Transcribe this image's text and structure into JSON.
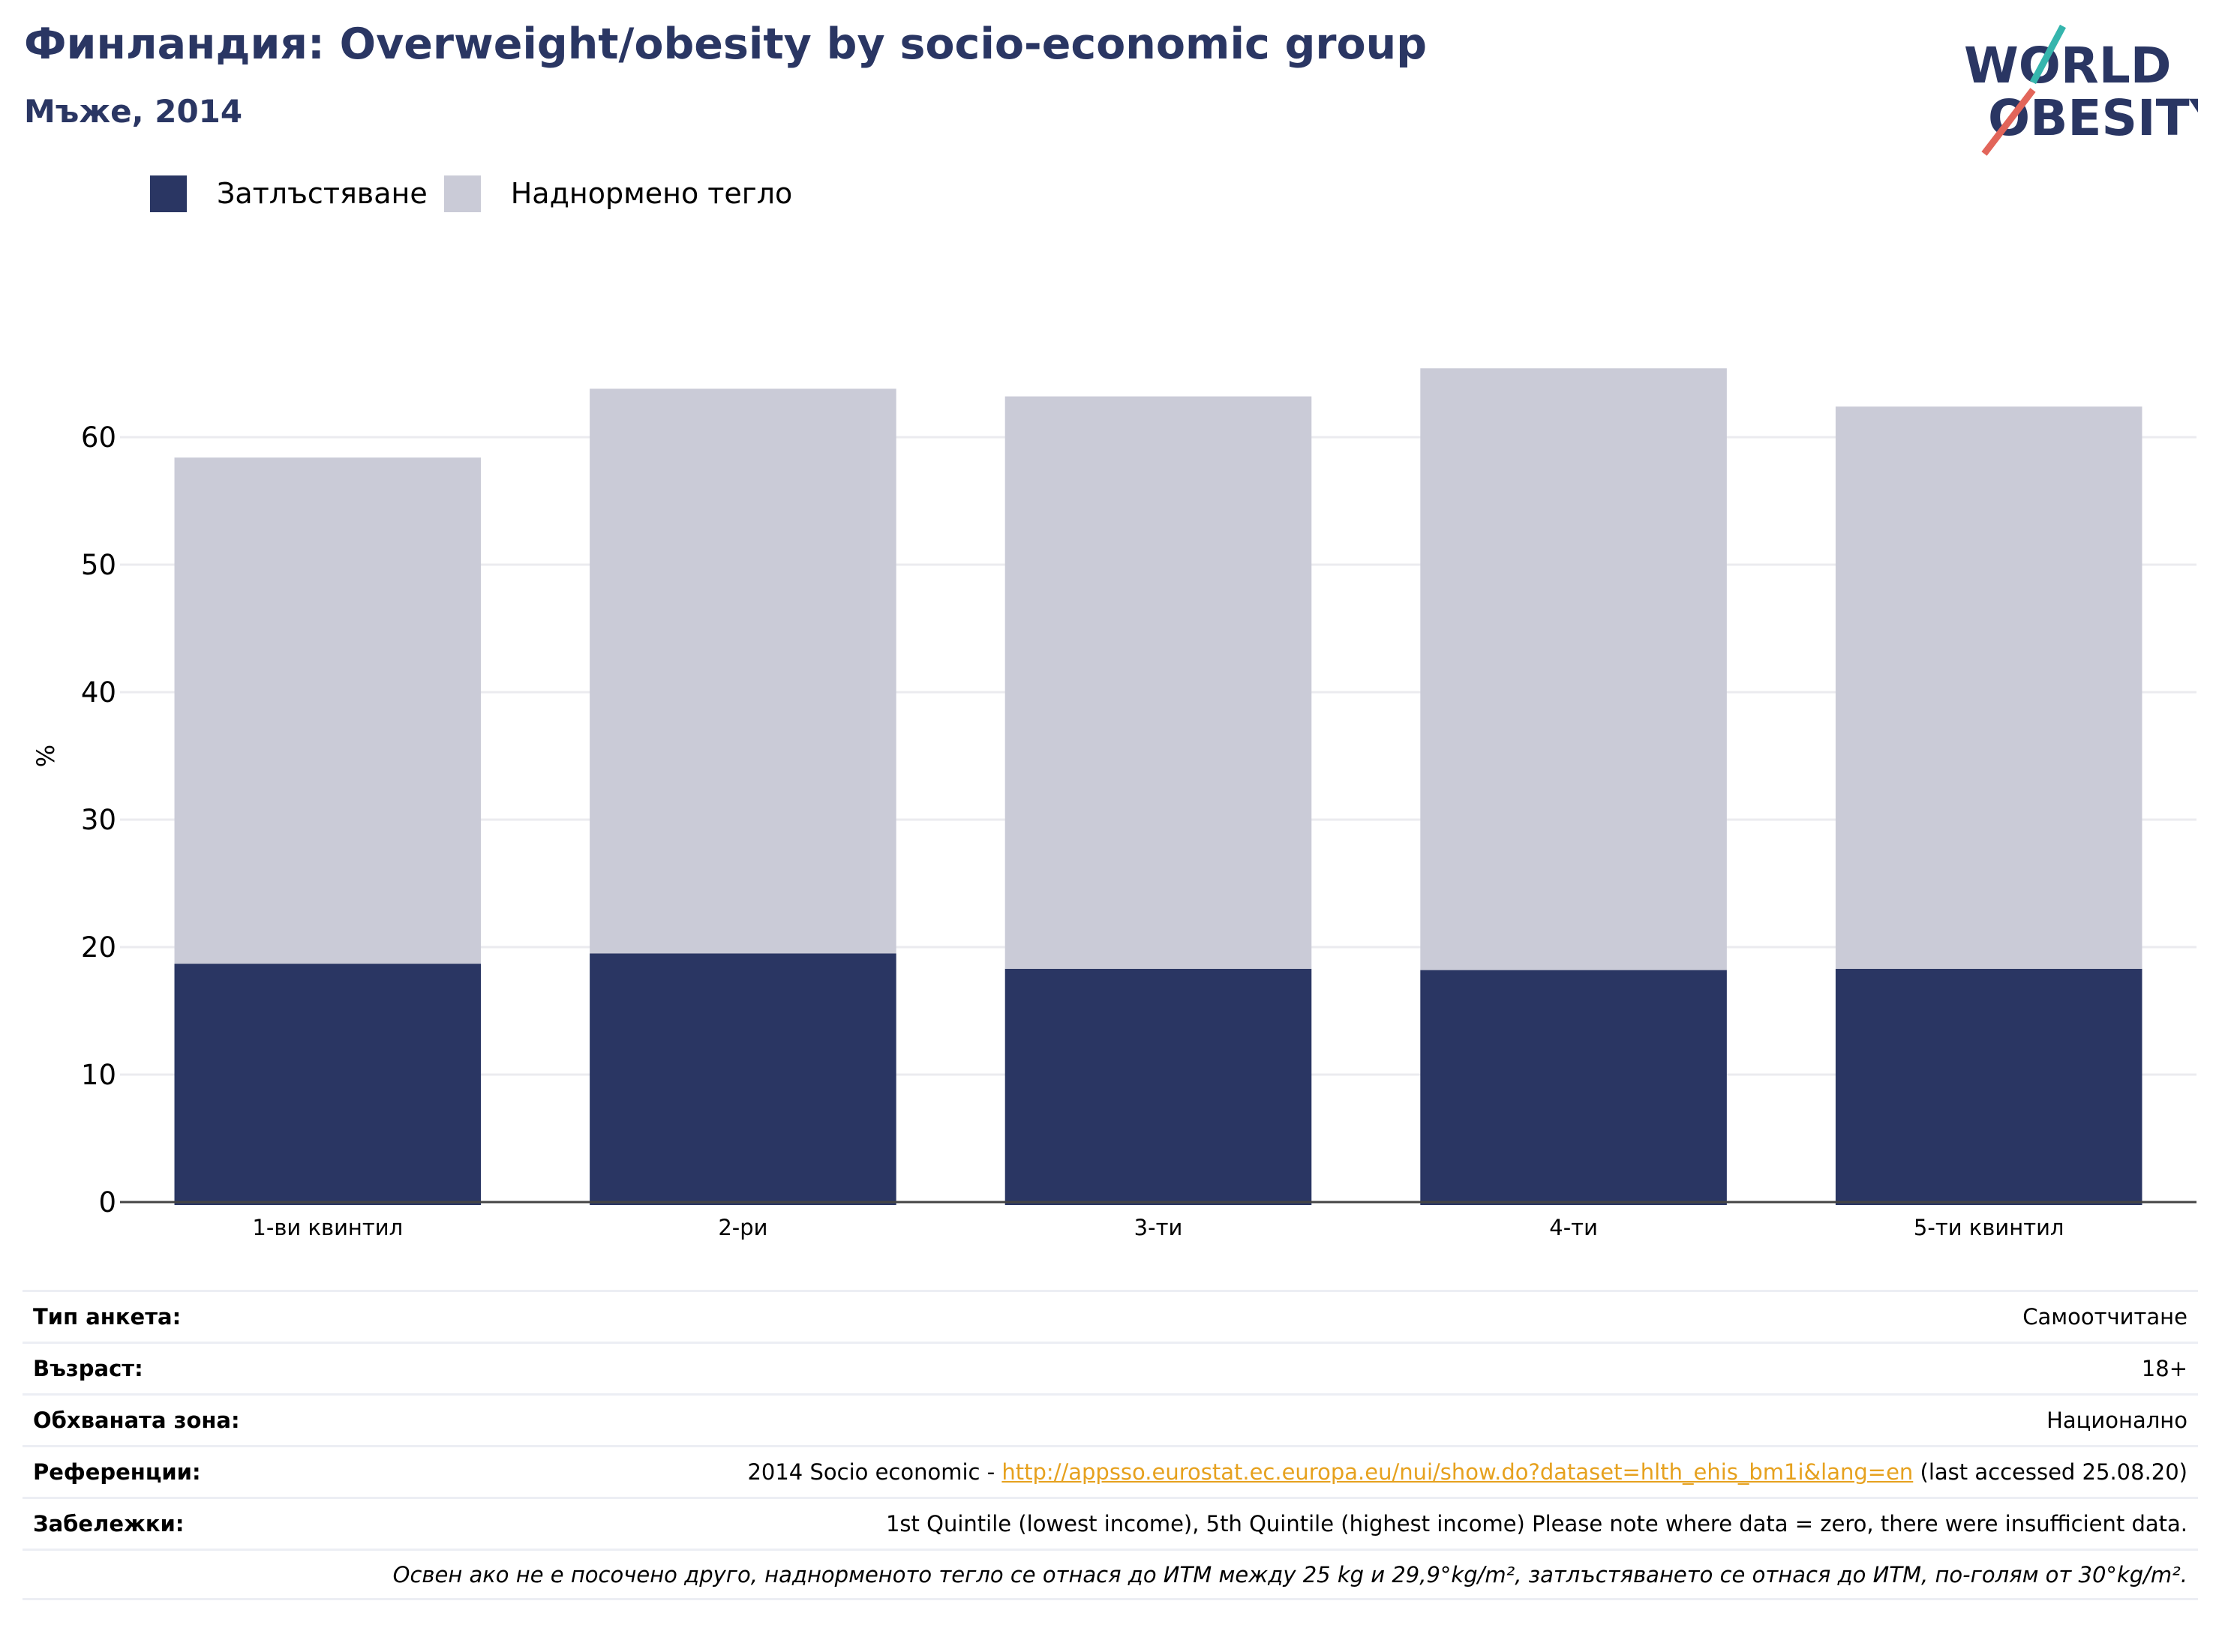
{
  "header": {
    "title": "Финландия: Overweight/obesity by socio-economic group",
    "subtitle": "Мъже, 2014"
  },
  "logo": {
    "line1": "WORLD",
    "line2": "OBESITY"
  },
  "colors": {
    "obesity": "#2a3663",
    "overweight": "#cacbd7",
    "title": "#2a3663",
    "link": "#e6a11e"
  },
  "chart_data": {
    "type": "bar",
    "stacked": true,
    "categories": [
      "1-ви квинтил",
      "2-ри",
      "3-ти",
      "4-ти",
      "5-ти квинтил"
    ],
    "series": [
      {
        "name": "Затлъстяване",
        "values": [
          18.7,
          19.5,
          18.3,
          18.2,
          18.3
        ]
      },
      {
        "name": "Наднормено тегло",
        "values": [
          39.7,
          44.3,
          44.9,
          47.2,
          44.1
        ]
      }
    ],
    "ylabel": "%",
    "xlabel": "",
    "ylim": [
      0,
      70
    ],
    "yticks": [
      0,
      10,
      20,
      30,
      40,
      50,
      60
    ],
    "grid": true,
    "legend_position": "top-left"
  },
  "info": {
    "survey_label": "Тип анкета:",
    "survey_value": "Самоотчитане",
    "age_label": "Възраст:",
    "age_value": "18+",
    "area_label": "Обхваната зона:",
    "area_value": "Национално",
    "refs_label": "Референции:",
    "refs_prefix": "2014 Socio economic - ",
    "refs_link": "http://appsso.eurostat.ec.europa.eu/nui/show.do?dataset=hlth_ehis_bm1i&lang=en",
    "refs_suffix": " (last accessed 25.08.20)",
    "notes_label": "Забележки:",
    "notes_value": "1st Quintile (lowest income), 5th Quintile (highest income) Please note where data = zero, there were insufficient data.",
    "definition": "Освен ако не е посочено друго, наднорменото тегло се отнася до ИТМ между 25 kg и 29,9°kg/m², затлъстяването се отнася до ИТМ, по-голям от 30°kg/m²."
  }
}
